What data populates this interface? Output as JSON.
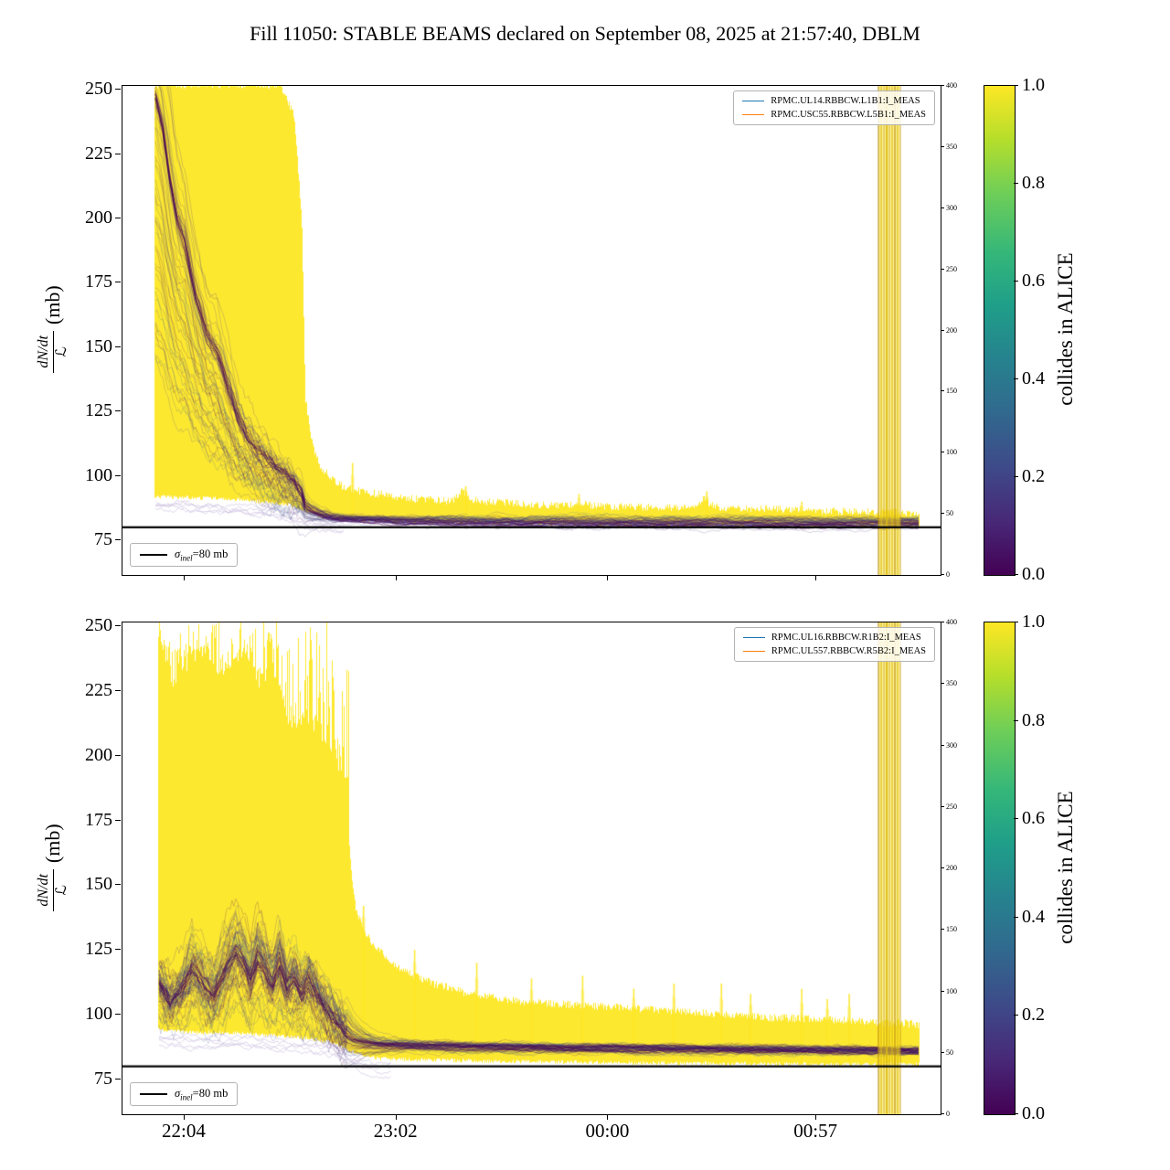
{
  "title": "Fill 11050: STABLE BEAMS declared on September 08, 2025 at 21:57:40, DBLM",
  "chart_data": [
    {
      "type": "line",
      "title": "",
      "ylabel": "dN/dt / ℒ (mb)",
      "ylabel_parts": {
        "numerator": "dN/dt",
        "denominator": "ℒ",
        "unit": "(mb)"
      },
      "ylim": [
        61.5,
        251.5
      ],
      "xlim_minutes": [
        0,
        224
      ],
      "x_time_origin": "21:47",
      "xticks": [
        {
          "t": 17,
          "label": "22:04"
        },
        {
          "t": 75,
          "label": "23:02"
        },
        {
          "t": 133,
          "label": "00:00"
        },
        {
          "t": 190,
          "label": "00:57"
        }
      ],
      "yticks": [
        75,
        100,
        125,
        150,
        175,
        200,
        225,
        250
      ],
      "right_axis_ticks": [
        0,
        50,
        100,
        150,
        200,
        250,
        300,
        350,
        400
      ],
      "sigma_line": {
        "y": 80,
        "label": "σ_inel=80 mb",
        "label_parts": {
          "symbol": "σ",
          "subscript": "inel",
          "rest": "=80 mb"
        }
      },
      "legend": [
        {
          "label": "RPMC.UL14.RBBCW.L1B1:I_MEAS",
          "color": "#1f77b4"
        },
        {
          "label": "RPMC.USC55.RBBCW.L5B1:I_MEAS",
          "color": "#ff7f0e"
        }
      ],
      "colorbar": {
        "label": "collides in ALICE",
        "ticks": [
          1.0,
          0.8,
          0.6,
          0.4,
          0.2,
          0.0
        ]
      },
      "band_color": "#fde725",
      "trace_colors": [
        "#440154",
        "#46327e",
        "#414487",
        "#355e8d"
      ],
      "light_trace_color": "#cdc0e0",
      "stripe_colors": [
        "#b8860b",
        "#d9b611"
      ],
      "ensemble": {
        "data_start": 9,
        "data_end": 218,
        "collapse_t": 49,
        "pre_spiky": false,
        "stripe_t": [
          207,
          213
        ],
        "env_max": [
          [
            9,
            252
          ],
          [
            43,
            252
          ],
          [
            47,
            240
          ],
          [
            49,
            200
          ],
          [
            50,
            130
          ],
          [
            52,
            112
          ],
          [
            54,
            104
          ],
          [
            57,
            99
          ],
          [
            60,
            96
          ],
          [
            65,
            94
          ],
          [
            70,
            93
          ],
          [
            80,
            91
          ],
          [
            90,
            90
          ],
          [
            93,
            94
          ],
          [
            95,
            91
          ],
          [
            100,
            90
          ],
          [
            110,
            89
          ],
          [
            120,
            88.5
          ],
          [
            125,
            89.5
          ],
          [
            128,
            88.5
          ],
          [
            135,
            88
          ],
          [
            145,
            88
          ],
          [
            155,
            87.5
          ],
          [
            159,
            91
          ],
          [
            162,
            88
          ],
          [
            170,
            87.5
          ],
          [
            180,
            87
          ],
          [
            190,
            86.5
          ],
          [
            200,
            86
          ],
          [
            210,
            86
          ],
          [
            218,
            85.5
          ]
        ],
        "env_min": [
          [
            9,
            92
          ],
          [
            30,
            91
          ],
          [
            45,
            89
          ],
          [
            50,
            86
          ],
          [
            55,
            84
          ],
          [
            60,
            83
          ],
          [
            80,
            82
          ],
          [
            120,
            81.2
          ],
          [
            160,
            80.9
          ],
          [
            218,
            80.7
          ]
        ],
        "dark_center": [
          [
            9,
            248
          ],
          [
            11,
            235
          ],
          [
            13,
            215
          ],
          [
            15,
            200
          ],
          [
            17,
            192
          ],
          [
            20,
            170
          ],
          [
            23,
            155
          ],
          [
            26,
            148
          ],
          [
            29,
            135
          ],
          [
            32,
            122
          ],
          [
            34,
            116
          ],
          [
            36,
            112
          ],
          [
            39,
            107
          ],
          [
            41,
            104
          ],
          [
            43,
            101
          ],
          [
            45,
            99
          ],
          [
            47,
            97
          ],
          [
            49,
            93
          ],
          [
            50,
            88
          ],
          [
            52,
            86
          ],
          [
            55,
            84.5
          ],
          [
            58,
            83.5
          ],
          [
            62,
            83
          ],
          [
            70,
            82.5
          ],
          [
            80,
            82
          ],
          [
            100,
            81.6
          ],
          [
            130,
            81.3
          ],
          [
            170,
            81.1
          ],
          [
            218,
            81
          ]
        ],
        "spikes": [
          {
            "t": 63,
            "v": 105
          },
          {
            "t": 94,
            "v": 96
          },
          {
            "t": 125,
            "v": 93
          },
          {
            "t": 160,
            "v": 94
          },
          {
            "t": 186,
            "v": 90
          }
        ]
      }
    },
    {
      "type": "line",
      "title": "",
      "ylabel": "dN/dt / ℒ (mb)",
      "ylabel_parts": {
        "numerator": "dN/dt",
        "denominator": "ℒ",
        "unit": "(mb)"
      },
      "ylim": [
        61.5,
        251.5
      ],
      "xlim_minutes": [
        0,
        224
      ],
      "x_time_origin": "21:47",
      "xticks": [
        {
          "t": 17,
          "label": "22:04"
        },
        {
          "t": 75,
          "label": "23:02"
        },
        {
          "t": 133,
          "label": "00:00"
        },
        {
          "t": 190,
          "label": "00:57"
        }
      ],
      "yticks": [
        75,
        100,
        125,
        150,
        175,
        200,
        225,
        250
      ],
      "right_axis_ticks": [
        0,
        50,
        100,
        150,
        200,
        250,
        300,
        350,
        400
      ],
      "sigma_line": {
        "y": 80,
        "label": "σ_inel=80 mb",
        "label_parts": {
          "symbol": "σ",
          "subscript": "inel",
          "rest": "=80 mb"
        }
      },
      "legend": [
        {
          "label": "RPMC.UL16.RBBCW.R1B2:I_MEAS",
          "color": "#1f77b4"
        },
        {
          "label": "RPMC.UL557.RBBCW.R5B2:I_MEAS",
          "color": "#ff7f0e"
        }
      ],
      "colorbar": {
        "label": "collides in ALICE",
        "ticks": [
          1.0,
          0.8,
          0.6,
          0.4,
          0.2,
          0.0
        ]
      },
      "band_color": "#fde725",
      "trace_colors": [
        "#440154",
        "#46327e",
        "#414487",
        "#355e8d"
      ],
      "light_trace_color": "#cdc0e0",
      "stripe_colors": [
        "#b8860b",
        "#d9b611"
      ],
      "ensemble": {
        "data_start": 10,
        "data_end": 218,
        "collapse_t": 62,
        "pre_spiky": true,
        "stripe_t": [
          207,
          213
        ],
        "env_max": [
          [
            10,
            245
          ],
          [
            14,
            225
          ],
          [
            18,
            235
          ],
          [
            22,
            240
          ],
          [
            26,
            230
          ],
          [
            30,
            235
          ],
          [
            34,
            240
          ],
          [
            38,
            225
          ],
          [
            42,
            230
          ],
          [
            46,
            210
          ],
          [
            50,
            215
          ],
          [
            54,
            205
          ],
          [
            58,
            200
          ],
          [
            61,
            185
          ],
          [
            62,
            165
          ],
          [
            63,
            148
          ],
          [
            64,
            140
          ],
          [
            66,
            133
          ],
          [
            68,
            128
          ],
          [
            72,
            122
          ],
          [
            76,
            118
          ],
          [
            80,
            115
          ],
          [
            85,
            112
          ],
          [
            90,
            110
          ],
          [
            95,
            108
          ],
          [
            100,
            107
          ],
          [
            110,
            105
          ],
          [
            120,
            104
          ],
          [
            133,
            103
          ],
          [
            145,
            102
          ],
          [
            155,
            101
          ],
          [
            165,
            100
          ],
          [
            175,
            99
          ],
          [
            185,
            98.5
          ],
          [
            195,
            98
          ],
          [
            205,
            97
          ],
          [
            213,
            97
          ],
          [
            218,
            96
          ]
        ],
        "env_min": [
          [
            10,
            94
          ],
          [
            20,
            93
          ],
          [
            30,
            93
          ],
          [
            40,
            92
          ],
          [
            50,
            91
          ],
          [
            58,
            89
          ],
          [
            62,
            86
          ],
          [
            66,
            84
          ],
          [
            70,
            83
          ],
          [
            80,
            82.5
          ],
          [
            100,
            82
          ],
          [
            130,
            81.5
          ],
          [
            170,
            81
          ],
          [
            218,
            80.8
          ]
        ],
        "dark_center": [
          [
            10,
            112
          ],
          [
            13,
            106
          ],
          [
            16,
            110
          ],
          [
            19,
            118
          ],
          [
            22,
            113
          ],
          [
            25,
            108
          ],
          [
            28,
            117
          ],
          [
            31,
            124
          ],
          [
            33,
            120
          ],
          [
            35,
            113
          ],
          [
            37,
            122
          ],
          [
            39,
            118
          ],
          [
            41,
            112
          ],
          [
            43,
            120
          ],
          [
            45,
            110
          ],
          [
            47,
            114
          ],
          [
            49,
            108
          ],
          [
            51,
            112
          ],
          [
            53,
            108
          ],
          [
            55,
            104
          ],
          [
            57,
            100
          ],
          [
            59,
            96
          ],
          [
            61,
            92
          ],
          [
            63,
            90
          ],
          [
            66,
            89
          ],
          [
            70,
            88.5
          ],
          [
            80,
            88
          ],
          [
            95,
            87.5
          ],
          [
            110,
            87.3
          ],
          [
            130,
            87
          ],
          [
            150,
            86.8
          ],
          [
            170,
            86.6
          ],
          [
            190,
            86.3
          ],
          [
            210,
            86
          ],
          [
            218,
            86
          ]
        ],
        "spikes": [
          {
            "t": 66,
            "v": 142
          },
          {
            "t": 80,
            "v": 125
          },
          {
            "t": 97,
            "v": 120
          },
          {
            "t": 112,
            "v": 114
          },
          {
            "t": 126,
            "v": 115
          },
          {
            "t": 140,
            "v": 110
          },
          {
            "t": 151,
            "v": 112
          },
          {
            "t": 164,
            "v": 112
          },
          {
            "t": 172,
            "v": 108
          },
          {
            "t": 186,
            "v": 110
          },
          {
            "t": 193,
            "v": 106
          },
          {
            "t": 199,
            "v": 108
          }
        ]
      }
    }
  ]
}
